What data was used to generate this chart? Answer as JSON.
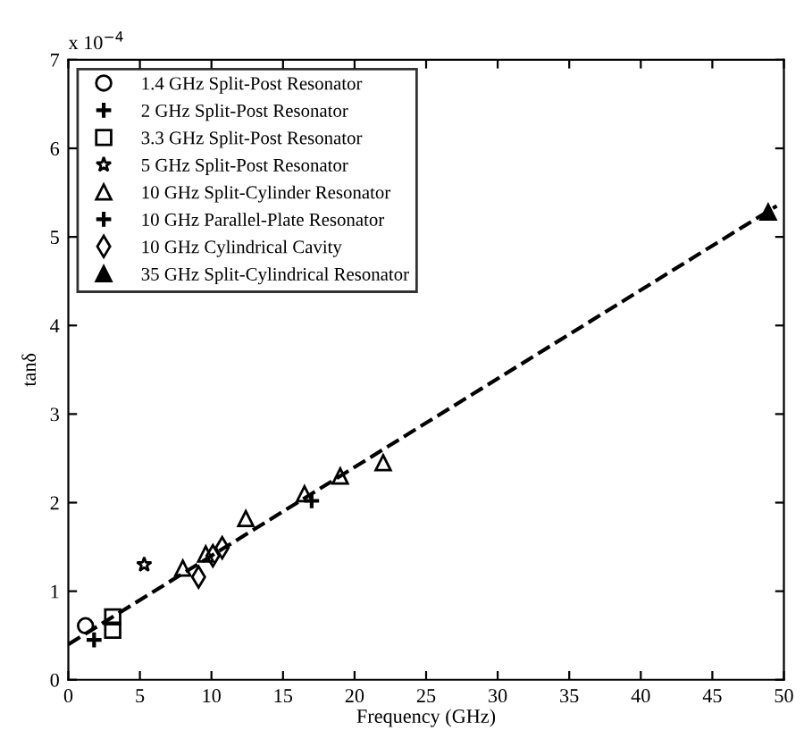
{
  "chart_data": {
    "type": "scatter",
    "xlabel": "Frequency (GHz)",
    "ylabel": "tanδ",
    "annotations": [
      "x 10$^{−4}$"
    ],
    "xlim": [
      0,
      50
    ],
    "ylim": [
      0,
      7
    ],
    "xticks": [
      0,
      5,
      10,
      15,
      20,
      25,
      30,
      35,
      40,
      45,
      50
    ],
    "yticks": [
      0,
      1,
      2,
      3,
      4,
      5,
      6,
      7
    ],
    "grid": false,
    "legend": "top left",
    "series": [
      {
        "name": "1.4 GHz Split-Post Resonator",
        "color": "#000000",
        "marker": "circle",
        "x": [
          1.2
        ],
        "values": [
          0.61
        ]
      },
      {
        "name": "2 GHz Split-Post Resonator",
        "color": "#000000",
        "marker": "cross",
        "x": [
          1.8
        ],
        "values": [
          0.45
        ]
      },
      {
        "name": "3.3 GHz Split-Post Resonator",
        "color": "#000000",
        "marker": "square",
        "x": [
          3.1,
          3.1
        ],
        "values": [
          0.71,
          0.56
        ]
      },
      {
        "name": "5 GHz Split-Post Resonator",
        "color": "#000000",
        "marker": "star",
        "x": [
          5.3
        ],
        "values": [
          1.3
        ]
      },
      {
        "name": "10 GHz Split-Cylinder Resonator",
        "color": "#000000",
        "marker": "triangle",
        "x": [
          8.0,
          9.6,
          12.4,
          16.5,
          19.0,
          22.0
        ],
        "values": [
          1.26,
          1.42,
          1.82,
          2.1,
          2.3,
          2.45
        ]
      },
      {
        "name": "10 GHz Parallel-Plate Resonator",
        "color": "#000000",
        "marker": "cross",
        "x": [
          17.0
        ],
        "values": [
          2.02
        ]
      },
      {
        "name": "10 GHz Cylindrical Cavity",
        "color": "#000000",
        "marker": "diamond",
        "x": [
          9.1,
          10.1,
          10.75
        ],
        "values": [
          1.16,
          1.4,
          1.49
        ]
      },
      {
        "name": "35 GHz Split-Cylindrical Resonator",
        "color": "#000000",
        "marker": "triangle",
        "x": [
          48.9
        ],
        "values": [
          5.28
        ]
      },
      {
        "type": "line",
        "color": "#000000",
        "line_style": "dashed",
        "marker": "none",
        "x": [
          0,
          49.5
        ],
        "values": [
          0.4,
          5.35
        ]
      }
    ]
  }
}
